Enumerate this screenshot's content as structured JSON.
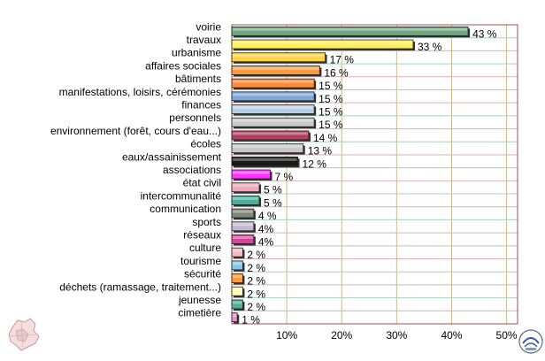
{
  "chart_data": {
    "type": "bar",
    "orientation": "horizontal",
    "categories": [
      "voirie",
      "travaux",
      "urbanisme",
      "affaires sociales",
      "bâtiments",
      "manifestations, loisirs, cérémonies",
      "finances",
      "personnels",
      "environnement (forêt, cours d'eau...)",
      "écoles",
      "eaux/assainissement",
      "associations",
      "état civil",
      "intercommunalité",
      "communication",
      "sports",
      "réseaux",
      "culture",
      "tourisme",
      "sécurité",
      "déchets (ramassage, traitement...)",
      "jeunesse",
      "cimetière"
    ],
    "values": [
      43,
      33,
      17,
      16,
      15,
      15,
      15,
      15,
      14,
      13,
      12,
      7,
      5,
      5,
      4,
      4,
      4,
      2,
      2,
      2,
      2,
      2,
      1
    ],
    "value_labels": [
      "43 %",
      "33 %",
      "17 %",
      "16 %",
      "15 %",
      "15 %",
      "15 %",
      "15 %",
      "14 %",
      "13 %",
      "12 %",
      "7 %",
      "5 %",
      "5 %",
      "4 %",
      "4%",
      "4%",
      "2 %",
      "2 %",
      "2 %",
      "2 %",
      "2 %",
      "1 %"
    ],
    "bar_colors": [
      "#6aa97d",
      "#ffef5a",
      "#ffd24a",
      "#ff9a3a",
      "#ff8a3a",
      "#7fa6d6",
      "#b8cce6",
      "#c8c8c8",
      "#b04060",
      "#c8c8c8",
      "#1a1a1a",
      "#ff33ff",
      "#f2a8b8",
      "#4fae9a",
      "#808878",
      "#c8b8d8",
      "#d04a9a",
      "#f7b8c0",
      "#7fc8e8",
      "#ff9a3a",
      "#ffffa8",
      "#4fae9a",
      "#e890c8"
    ],
    "xlim": [
      0,
      52
    ],
    "xticks": [
      10,
      20,
      30,
      40,
      50
    ],
    "xtick_labels": [
      "10%",
      "20%",
      "30%",
      "40%",
      "50%"
    ],
    "grid": true,
    "title": "",
    "xlabel": "",
    "ylabel": ""
  }
}
